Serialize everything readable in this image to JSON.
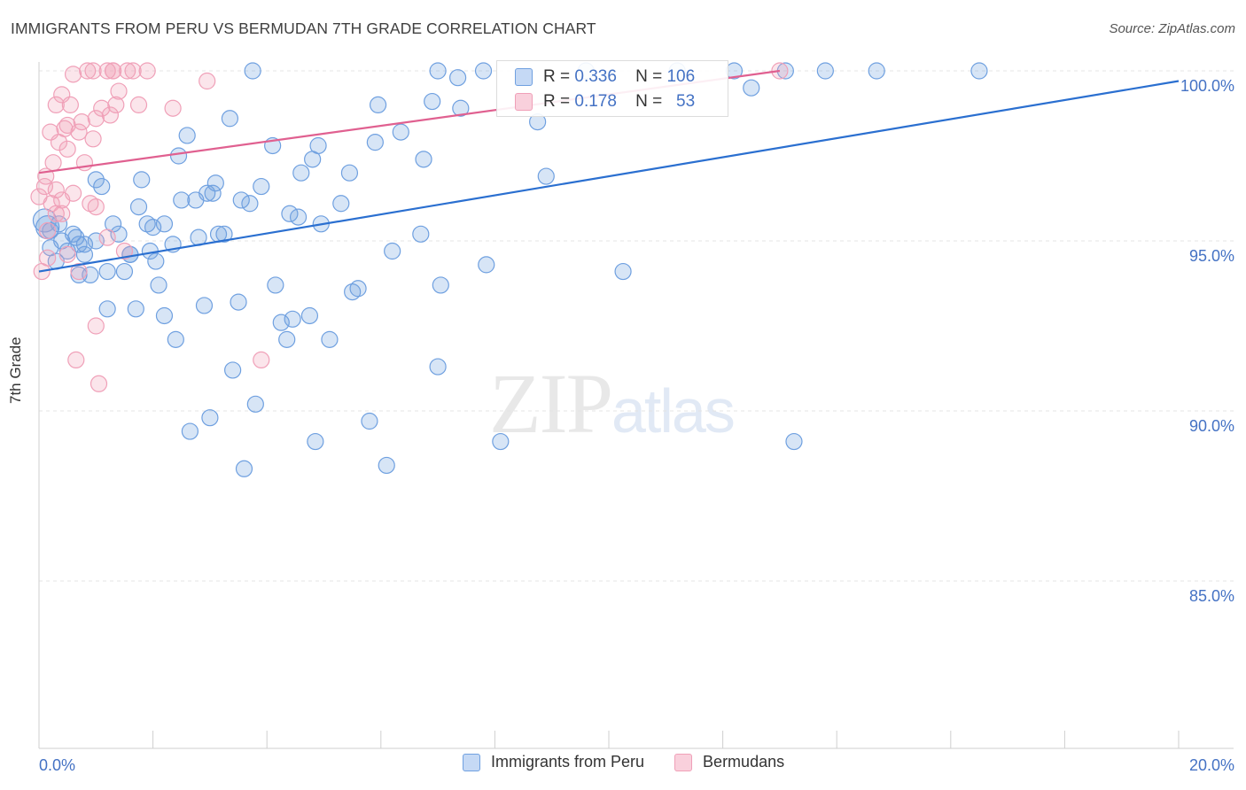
{
  "title": "IMMIGRANTS FROM PERU VS BERMUDAN 7TH GRADE CORRELATION CHART",
  "source": "Source: ZipAtlas.com",
  "watermark": {
    "zip": "ZIP",
    "atlas": "atlas"
  },
  "chart_data": {
    "type": "scatter",
    "title": "IMMIGRANTS FROM PERU VS BERMUDAN 7TH GRADE CORRELATION CHART",
    "xlabel": "",
    "ylabel": "7th Grade",
    "xlim": [
      0.0,
      20.0
    ],
    "ylim": [
      80.0,
      100.5
    ],
    "x_tick_labels": [
      "0.0%",
      "20.0%"
    ],
    "y_ticks": [
      85.0,
      90.0,
      95.0,
      100.0
    ],
    "y_tick_labels": [
      "85.0%",
      "90.0%",
      "95.0%",
      "100.0%"
    ],
    "grid": true,
    "colors": {
      "peru": "#6fa0e0",
      "peru_line": "#2a6fd0",
      "bermudan": "#f0a0b8",
      "bermudan_line": "#e06090"
    },
    "series": [
      {
        "name": "Immigrants from Peru",
        "R": "0.336",
        "N": "106",
        "trend": {
          "x": [
            0.0,
            20.0
          ],
          "y": [
            94.1,
            99.7
          ]
        },
        "points": [
          [
            0.1,
            95.6
          ],
          [
            0.2,
            95.3
          ],
          [
            0.2,
            94.8
          ],
          [
            0.3,
            94.4
          ],
          [
            0.35,
            95.5
          ],
          [
            0.4,
            95.0
          ],
          [
            0.5,
            94.7
          ],
          [
            0.6,
            95.2
          ],
          [
            0.65,
            95.1
          ],
          [
            0.7,
            94.9
          ],
          [
            0.7,
            94.0
          ],
          [
            0.8,
            94.9
          ],
          [
            0.8,
            94.6
          ],
          [
            0.9,
            94.0
          ],
          [
            1.0,
            95.0
          ],
          [
            1.0,
            96.8
          ],
          [
            1.1,
            96.6
          ],
          [
            1.2,
            94.1
          ],
          [
            1.2,
            93.0
          ],
          [
            1.3,
            95.5
          ],
          [
            1.4,
            95.2
          ],
          [
            1.5,
            94.1
          ],
          [
            1.6,
            94.6
          ],
          [
            1.6,
            94.6
          ],
          [
            1.7,
            93.0
          ],
          [
            1.75,
            96.0
          ],
          [
            1.8,
            96.8
          ],
          [
            1.9,
            95.5
          ],
          [
            1.95,
            94.7
          ],
          [
            2.0,
            95.4
          ],
          [
            2.05,
            94.4
          ],
          [
            2.1,
            93.7
          ],
          [
            2.2,
            95.5
          ],
          [
            2.2,
            92.8
          ],
          [
            2.35,
            94.9
          ],
          [
            2.4,
            92.1
          ],
          [
            2.45,
            97.5
          ],
          [
            2.5,
            96.2
          ],
          [
            2.6,
            98.1
          ],
          [
            2.65,
            89.4
          ],
          [
            2.75,
            96.2
          ],
          [
            2.8,
            95.1
          ],
          [
            2.9,
            93.1
          ],
          [
            2.95,
            96.4
          ],
          [
            3.0,
            89.8
          ],
          [
            3.05,
            96.4
          ],
          [
            3.1,
            96.7
          ],
          [
            3.15,
            95.2
          ],
          [
            3.25,
            95.2
          ],
          [
            3.35,
            98.6
          ],
          [
            3.4,
            91.2
          ],
          [
            3.5,
            93.2
          ],
          [
            3.55,
            96.2
          ],
          [
            3.6,
            88.3
          ],
          [
            3.7,
            96.1
          ],
          [
            3.75,
            100.0
          ],
          [
            3.8,
            90.2
          ],
          [
            3.9,
            96.6
          ],
          [
            4.1,
            97.8
          ],
          [
            4.15,
            93.7
          ],
          [
            4.25,
            92.6
          ],
          [
            4.35,
            92.1
          ],
          [
            4.4,
            95.8
          ],
          [
            4.45,
            92.7
          ],
          [
            4.55,
            95.7
          ],
          [
            4.6,
            97.0
          ],
          [
            4.75,
            92.8
          ],
          [
            4.8,
            97.4
          ],
          [
            4.85,
            89.1
          ],
          [
            4.9,
            97.8
          ],
          [
            4.95,
            95.5
          ],
          [
            5.1,
            92.1
          ],
          [
            5.3,
            96.1
          ],
          [
            5.45,
            97.0
          ],
          [
            5.5,
            93.5
          ],
          [
            5.6,
            93.6
          ],
          [
            5.8,
            89.7
          ],
          [
            5.9,
            97.9
          ],
          [
            5.95,
            99.0
          ],
          [
            6.1,
            88.4
          ],
          [
            6.2,
            94.7
          ],
          [
            6.35,
            98.2
          ],
          [
            6.7,
            95.2
          ],
          [
            6.75,
            97.4
          ],
          [
            6.9,
            99.1
          ],
          [
            7.0,
            91.3
          ],
          [
            7.0,
            100.0
          ],
          [
            7.05,
            93.7
          ],
          [
            7.35,
            99.8
          ],
          [
            7.4,
            98.9
          ],
          [
            7.8,
            100.0
          ],
          [
            7.85,
            94.3
          ],
          [
            8.1,
            89.1
          ],
          [
            8.75,
            98.5
          ],
          [
            8.9,
            96.9
          ],
          [
            9.6,
            100.0
          ],
          [
            10.25,
            94.1
          ],
          [
            11.2,
            100.0
          ],
          [
            12.5,
            99.5
          ],
          [
            12.2,
            100.0
          ],
          [
            13.1,
            100.0
          ],
          [
            13.25,
            89.1
          ],
          [
            13.8,
            100.0
          ],
          [
            14.7,
            100.0
          ],
          [
            16.5,
            100.0
          ],
          [
            0.15,
            95.4
          ]
        ]
      },
      {
        "name": "Bermudans",
        "R": "0.178",
        "N": "53",
        "trend": {
          "x": [
            0.0,
            13.0
          ],
          "y": [
            97.0,
            100.0
          ]
        },
        "points": [
          [
            0.0,
            96.3
          ],
          [
            0.05,
            94.1
          ],
          [
            0.1,
            96.6
          ],
          [
            0.12,
            96.9
          ],
          [
            0.15,
            94.5
          ],
          [
            0.2,
            98.2
          ],
          [
            0.22,
            96.1
          ],
          [
            0.25,
            97.3
          ],
          [
            0.3,
            95.8
          ],
          [
            0.3,
            96.5
          ],
          [
            0.35,
            97.9
          ],
          [
            0.4,
            95.8
          ],
          [
            0.4,
            96.2
          ],
          [
            0.4,
            99.3
          ],
          [
            0.45,
            98.3
          ],
          [
            0.5,
            98.4
          ],
          [
            0.5,
            97.7
          ],
          [
            0.5,
            94.6
          ],
          [
            0.55,
            99.0
          ],
          [
            0.6,
            96.4
          ],
          [
            0.6,
            99.9
          ],
          [
            0.65,
            91.5
          ],
          [
            0.7,
            94.1
          ],
          [
            0.7,
            98.2
          ],
          [
            0.75,
            98.5
          ],
          [
            0.8,
            97.3
          ],
          [
            0.85,
            100.0
          ],
          [
            0.9,
            96.1
          ],
          [
            0.95,
            98.0
          ],
          [
            1.0,
            98.6
          ],
          [
            0.95,
            100.0
          ],
          [
            1.0,
            92.5
          ],
          [
            1.0,
            96.0
          ],
          [
            1.05,
            90.8
          ],
          [
            1.1,
            98.9
          ],
          [
            1.2,
            95.1
          ],
          [
            1.2,
            100.0
          ],
          [
            1.25,
            98.7
          ],
          [
            1.3,
            100.0
          ],
          [
            1.35,
            99.0
          ],
          [
            1.3,
            100.0
          ],
          [
            1.4,
            99.4
          ],
          [
            1.5,
            94.7
          ],
          [
            1.55,
            100.0
          ],
          [
            1.65,
            100.0
          ],
          [
            1.75,
            99.0
          ],
          [
            1.9,
            100.0
          ],
          [
            2.35,
            98.9
          ],
          [
            2.95,
            99.7
          ],
          [
            3.9,
            91.5
          ],
          [
            13.0,
            100.0
          ],
          [
            0.3,
            99.0
          ],
          [
            0.15,
            95.3
          ]
        ]
      }
    ]
  },
  "legend": {
    "r_label": "R =",
    "n_label": "N =",
    "series": [
      {
        "name": "Immigrants from Peru",
        "r": "0.336",
        "n": "106"
      },
      {
        "name": "Bermudans",
        "r": "0.178",
        "n": "53"
      }
    ]
  }
}
